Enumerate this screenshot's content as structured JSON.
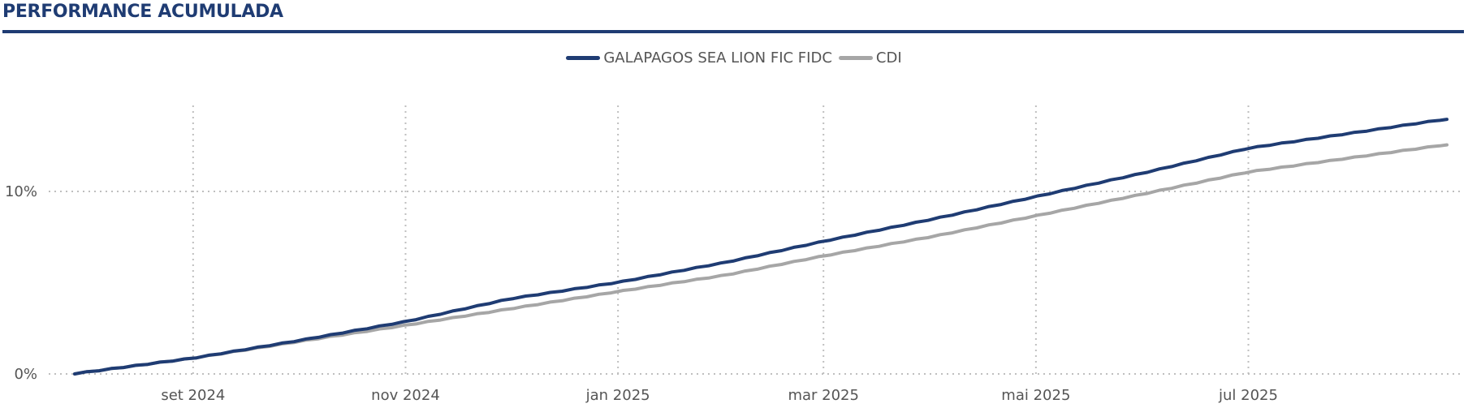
{
  "title": "PERFORMANCE ACUMULADA",
  "colors": {
    "accent": "#1f3c73",
    "cdi": "#a6a6a6",
    "grid": "#bfbfbf",
    "text": "#555555"
  },
  "chart_data": {
    "type": "line",
    "title": "PERFORMANCE ACUMULADA",
    "xlabel": "",
    "ylabel": "",
    "legend_position": "top-center",
    "grid": true,
    "x_ticks": [
      {
        "date": "2024-09-01",
        "label": "set 2024"
      },
      {
        "date": "2024-11-01",
        "label": "nov 2024"
      },
      {
        "date": "2025-01-01",
        "label": "jan 2025"
      },
      {
        "date": "2025-03-01",
        "label": "mar 2025"
      },
      {
        "date": "2025-05-01",
        "label": "mai 2025"
      },
      {
        "date": "2025-07-01",
        "label": "jul 2025"
      }
    ],
    "y_ticks": [
      {
        "value": 0,
        "label": "0%"
      },
      {
        "value": 10,
        "label": "10%"
      }
    ],
    "xlim": [
      "2024-07-29",
      "2025-08-27"
    ],
    "ylim": [
      0,
      14.5
    ],
    "series": [
      {
        "name": "GALAPAGOS SEA LION FIC FIDC",
        "color": "#1f3c73",
        "points": [
          {
            "x": "2024-07-29",
            "y": 0.0
          },
          {
            "x": "2024-09-01",
            "y": 0.85
          },
          {
            "x": "2024-10-01",
            "y": 1.8
          },
          {
            "x": "2024-11-01",
            "y": 2.85
          },
          {
            "x": "2024-12-01",
            "y": 4.1
          },
          {
            "x": "2025-01-01",
            "y": 5.0
          },
          {
            "x": "2025-02-01",
            "y": 6.1
          },
          {
            "x": "2025-03-01",
            "y": 7.25
          },
          {
            "x": "2025-04-01",
            "y": 8.45
          },
          {
            "x": "2025-05-01",
            "y": 9.7
          },
          {
            "x": "2025-06-01",
            "y": 11.0
          },
          {
            "x": "2025-07-01",
            "y": 12.35
          },
          {
            "x": "2025-08-27",
            "y": 13.95
          }
        ]
      },
      {
        "name": "CDI",
        "color": "#a6a6a6",
        "points": [
          {
            "x": "2024-07-29",
            "y": 0.0
          },
          {
            "x": "2024-09-01",
            "y": 0.85
          },
          {
            "x": "2024-10-01",
            "y": 1.75
          },
          {
            "x": "2024-11-01",
            "y": 2.65
          },
          {
            "x": "2024-12-01",
            "y": 3.55
          },
          {
            "x": "2025-01-01",
            "y": 4.5
          },
          {
            "x": "2025-02-01",
            "y": 5.4
          },
          {
            "x": "2025-03-01",
            "y": 6.45
          },
          {
            "x": "2025-04-01",
            "y": 7.5
          },
          {
            "x": "2025-05-01",
            "y": 8.65
          },
          {
            "x": "2025-06-01",
            "y": 9.85
          },
          {
            "x": "2025-07-01",
            "y": 11.05
          },
          {
            "x": "2025-08-27",
            "y": 12.55
          }
        ]
      }
    ]
  }
}
